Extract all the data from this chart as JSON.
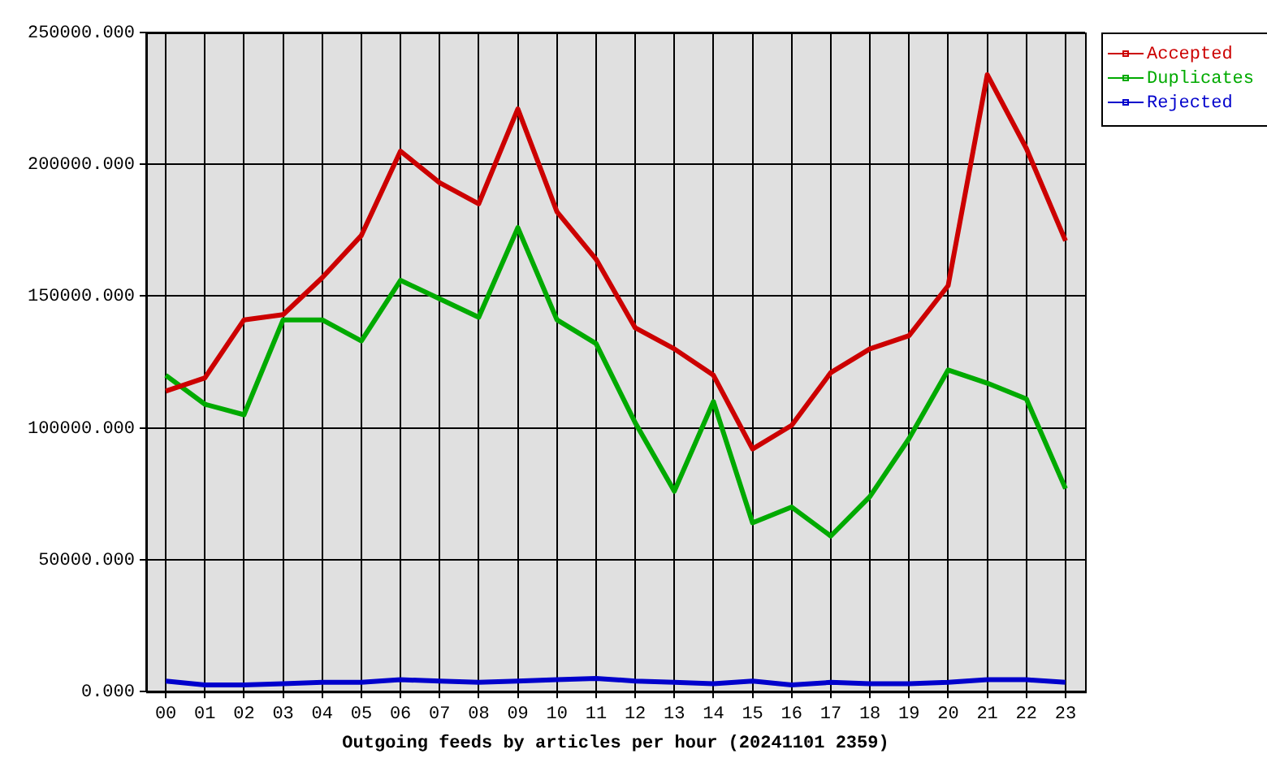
{
  "chart_data": {
    "type": "line",
    "xlabel": "Outgoing feeds by articles per hour (20241101 2359)",
    "categories": [
      "00",
      "01",
      "02",
      "03",
      "04",
      "05",
      "06",
      "07",
      "08",
      "09",
      "10",
      "11",
      "12",
      "13",
      "14",
      "15",
      "16",
      "17",
      "18",
      "19",
      "20",
      "21",
      "22",
      "23"
    ],
    "series": [
      {
        "name": "Accepted",
        "color": "#cc0000",
        "values": [
          114000,
          119000,
          141000,
          143000,
          157000,
          173000,
          205000,
          193000,
          185000,
          221000,
          182000,
          164000,
          138000,
          130000,
          120000,
          92000,
          101000,
          121000,
          130000,
          135000,
          154000,
          234000,
          206000,
          171000
        ]
      },
      {
        "name": "Duplicates",
        "color": "#00aa00",
        "values": [
          120000,
          109000,
          105000,
          141000,
          141000,
          133000,
          156000,
          149000,
          142000,
          176000,
          141000,
          132000,
          102000,
          76000,
          110000,
          64000,
          70000,
          59000,
          74000,
          96000,
          122000,
          117000,
          111000,
          77000
        ]
      },
      {
        "name": "Rejected",
        "color": "#0000cc",
        "values": [
          4000,
          2500,
          2500,
          3000,
          3500,
          3500,
          4500,
          4000,
          3500,
          4000,
          4500,
          5000,
          4000,
          3500,
          3000,
          4000,
          2500,
          3500,
          3000,
          3000,
          3500,
          4500,
          4500,
          3500
        ]
      }
    ],
    "ylim": [
      0,
      250000
    ],
    "yticks": [
      {
        "value": 0,
        "label": "0.000"
      },
      {
        "value": 50000,
        "label": "50000.000"
      },
      {
        "value": 100000,
        "label": "100000.000"
      },
      {
        "value": 150000,
        "label": "150000.000"
      },
      {
        "value": 200000,
        "label": "200000.000"
      },
      {
        "value": 250000,
        "label": "250000.000"
      }
    ],
    "grid": true,
    "legend": "top right"
  }
}
